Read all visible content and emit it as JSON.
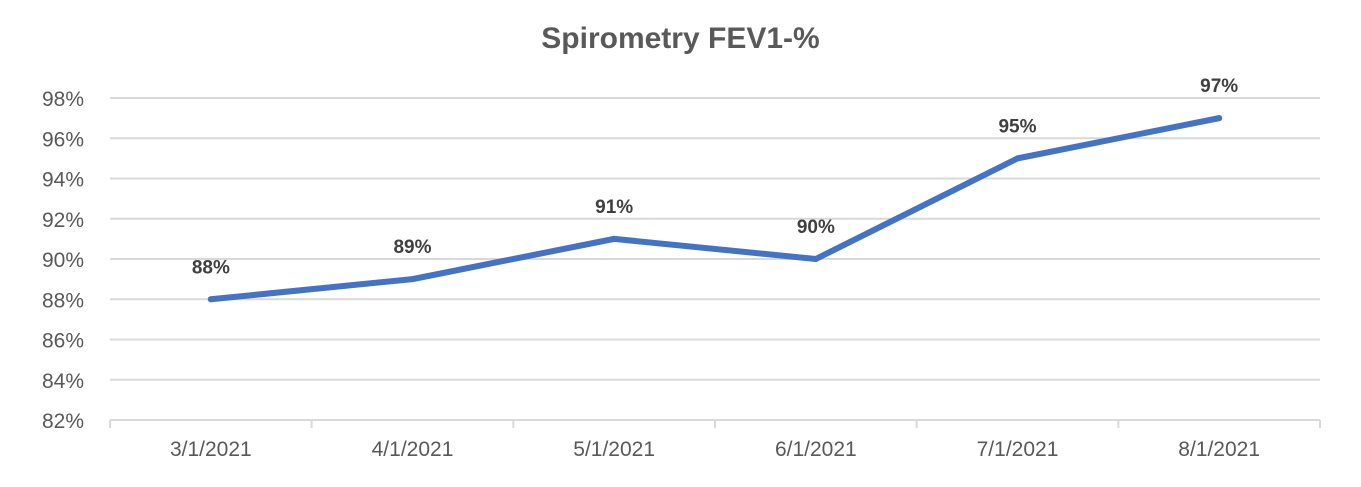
{
  "chart_data": {
    "type": "line",
    "title": "Spirometry FEV1-%",
    "categories": [
      "3/1/2021",
      "4/1/2021",
      "5/1/2021",
      "6/1/2021",
      "7/1/2021",
      "8/1/2021"
    ],
    "series": [
      {
        "values": [
          88,
          89,
          91,
          90,
          95,
          97
        ],
        "data_labels": [
          "88%",
          "89%",
          "91%",
          "90%",
          "95%",
          "97%"
        ],
        "color": "#4472C4"
      }
    ],
    "ylim": [
      82,
      98
    ],
    "yticks": [
      82,
      84,
      86,
      88,
      90,
      92,
      94,
      96,
      98
    ],
    "ytick_labels": [
      "82%",
      "84%",
      "86%",
      "88%",
      "90%",
      "92%",
      "94%",
      "96%",
      "98%"
    ],
    "grid": true,
    "legend": "none",
    "gridline_color": "#D9D9D9"
  }
}
